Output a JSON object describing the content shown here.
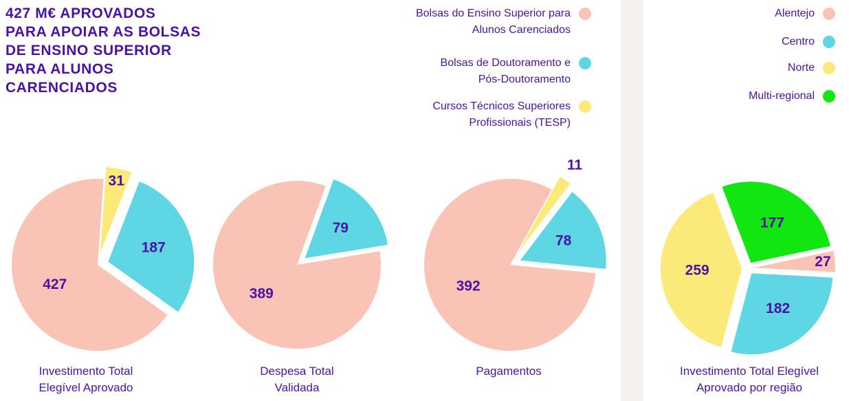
{
  "title": [
    "427 M€ APROVADOS",
    "PARA APOIAR AS BOLSAS",
    "DE ENSINO SUPERIOR",
    "PARA ALUNOS",
    "CARENCIADOS"
  ],
  "legend": {
    "names": [
      "Bolsas do Ensino Superior para Alunos Carenciados",
      "Bolsas de Doutoramento e Pós-Doutoramento",
      "Cursos Técnicos Superiores Profissionais (TESP)"
    ],
    "colors": [
      "#f9c3b6",
      "#5fd6e3",
      "#fbe97a"
    ]
  },
  "chart_data": [
    {
      "type": "pie",
      "title": "Investimento Total Elegível Aprovado",
      "values": [
        427,
        187,
        31
      ]
    },
    {
      "type": "pie",
      "title": "Despesa Total Validada",
      "values": [
        389,
        79
      ]
    },
    {
      "type": "pie",
      "title": "Pagamentos",
      "values": [
        392,
        78,
        11
      ]
    },
    {
      "type": "pie",
      "title": "Investimento Total Elegível Aprovado por região",
      "categories": [
        "Alentejo",
        "Centro",
        "Norte",
        "Multi-regional"
      ],
      "colors": [
        "#f9c3b6",
        "#5fd6e3",
        "#fbe97a",
        "#11e611"
      ],
      "values": [
        27,
        182,
        259,
        177
      ]
    }
  ]
}
